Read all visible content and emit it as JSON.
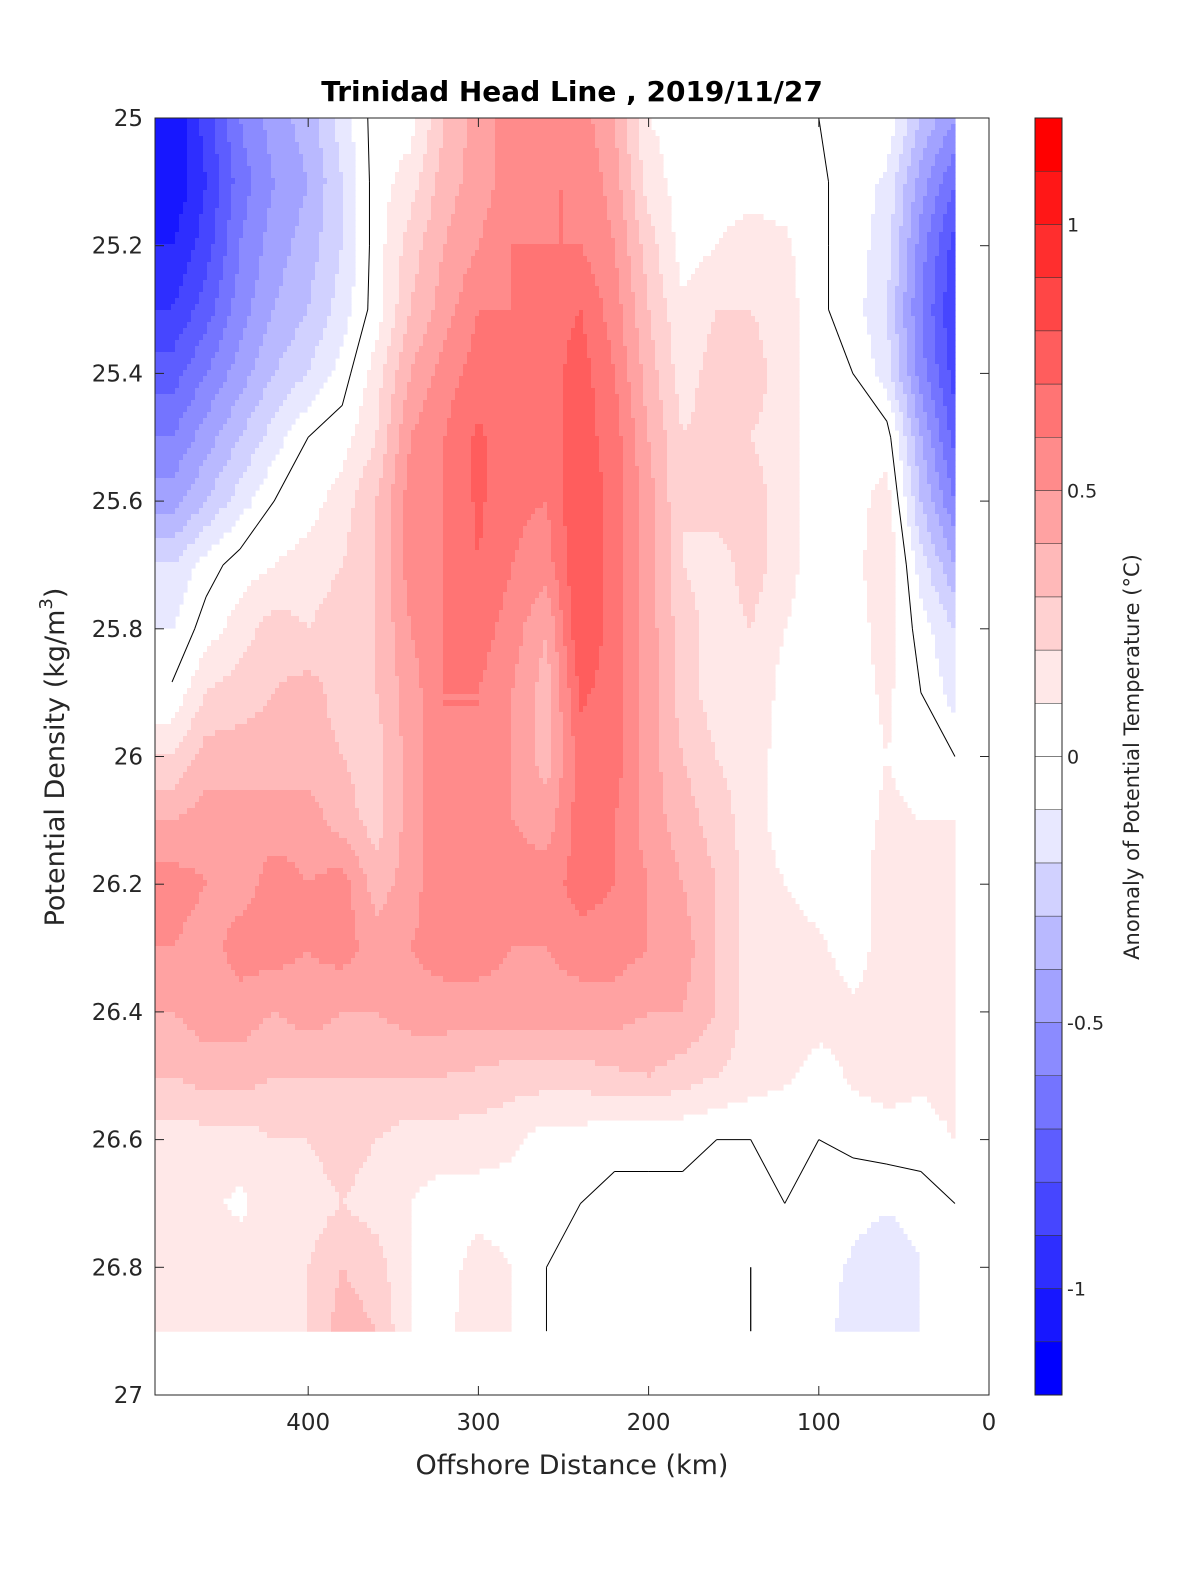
{
  "chart_data": {
    "type": "heatmap",
    "subtype": "filled-contour",
    "title": "Trinidad Head Line , 2019/11/27",
    "xlabel": "Offshore Distance (km)",
    "ylabel_main": "Potential Density (kg/m",
    "ylabel_sup": "3",
    "ylabel_close": ")",
    "colorbar_label": "Anomaly of Potential Temperature (°C)",
    "xlim": [
      490,
      0
    ],
    "ylim": [
      25,
      27
    ],
    "x_reversed": true,
    "y_reversed": true,
    "xticks": [
      400,
      300,
      200,
      100,
      0
    ],
    "xtick_labels": [
      "400",
      "300",
      "200",
      "100",
      "0"
    ],
    "yticks": [
      25,
      25.2,
      25.4,
      25.6,
      25.8,
      26,
      26.2,
      26.4,
      26.6,
      26.8,
      27
    ],
    "ytick_labels": [
      "25",
      "25.2",
      "25.4",
      "25.6",
      "25.8",
      "26",
      "26.2",
      "26.4",
      "26.6",
      "26.8",
      "27"
    ],
    "colorbar": {
      "range": [
        -1.2,
        1.2
      ],
      "step": 0.1,
      "white_band": [
        -0.1,
        0.1
      ],
      "ticks": [
        1,
        0.5,
        0,
        -0.5,
        -1
      ],
      "tick_labels": [
        "1",
        "0.5",
        "0",
        "-0.5",
        "-1"
      ],
      "positive_color": "#ff0000",
      "negative_color": "#0000ff"
    },
    "contour_lines": [
      0
    ],
    "x": [
      480,
      460,
      440,
      420,
      400,
      380,
      360,
      340,
      320,
      300,
      280,
      260,
      240,
      220,
      200,
      180,
      160,
      140,
      120,
      100,
      80,
      60,
      40,
      20
    ],
    "y": [
      25.0,
      25.1,
      25.2,
      25.3,
      25.4,
      25.5,
      25.6,
      25.7,
      25.8,
      25.9,
      26.0,
      26.1,
      26.2,
      26.3,
      26.4,
      26.5,
      26.6,
      26.7,
      26.8,
      26.9
    ],
    "z": [
      [
        -1.1,
        -0.85,
        -0.6,
        -0.45,
        -0.35,
        -0.15,
        0.05,
        0.05,
        0.3,
        0.45,
        0.55,
        0.6,
        0.55,
        0.4,
        0.1,
        0.05,
        0.05,
        0.05,
        0.05,
        0.0,
        -0.02,
        -0.02,
        -0.3,
        -0.5
      ],
      [
        -1.1,
        -0.9,
        -0.65,
        -0.5,
        -0.4,
        -0.2,
        0.05,
        0.15,
        0.35,
        0.45,
        0.55,
        0.6,
        0.6,
        0.45,
        0.15,
        0.05,
        0.05,
        0.05,
        0.05,
        0.02,
        -0.05,
        -0.12,
        -0.45,
        -0.7
      ],
      [
        -1.0,
        -0.85,
        -0.6,
        -0.45,
        -0.35,
        -0.2,
        0.05,
        0.25,
        0.4,
        0.5,
        0.6,
        0.6,
        0.6,
        0.5,
        0.25,
        0.05,
        0.1,
        0.15,
        0.12,
        0.02,
        -0.05,
        -0.15,
        -0.55,
        -0.85
      ],
      [
        -0.9,
        -0.75,
        -0.55,
        -0.4,
        -0.3,
        -0.15,
        0.05,
        0.3,
        0.45,
        0.6,
        0.6,
        0.65,
        0.7,
        0.55,
        0.3,
        0.12,
        0.2,
        0.2,
        0.15,
        0.02,
        -0.05,
        -0.2,
        -0.6,
        -0.9
      ],
      [
        -0.75,
        -0.6,
        -0.45,
        -0.3,
        -0.2,
        -0.05,
        0.15,
        0.4,
        0.55,
        0.65,
        0.65,
        0.65,
        0.75,
        0.6,
        0.35,
        0.15,
        0.25,
        0.25,
        0.15,
        0.02,
        0.0,
        -0.15,
        -0.55,
        -0.85
      ],
      [
        -0.6,
        -0.45,
        -0.3,
        -0.15,
        0.0,
        0.05,
        0.2,
        0.5,
        0.6,
        0.72,
        0.62,
        0.65,
        0.75,
        0.65,
        0.4,
        0.2,
        0.25,
        0.2,
        0.15,
        0.02,
        0.02,
        0.05,
        -0.4,
        -0.75
      ],
      [
        -0.45,
        -0.3,
        -0.15,
        0.0,
        0.05,
        0.15,
        0.3,
        0.55,
        0.6,
        0.72,
        0.62,
        0.6,
        0.8,
        0.65,
        0.45,
        0.2,
        0.25,
        0.25,
        0.15,
        0.02,
        0.05,
        0.15,
        -0.3,
        -0.6
      ],
      [
        -0.2,
        -0.05,
        0.05,
        0.1,
        0.15,
        0.2,
        0.3,
        0.55,
        0.6,
        0.7,
        0.6,
        0.55,
        0.8,
        0.65,
        0.45,
        0.2,
        0.15,
        0.25,
        0.15,
        0.02,
        0.05,
        0.2,
        -0.15,
        -0.4
      ],
      [
        -0.1,
        0.05,
        0.15,
        0.25,
        0.2,
        0.25,
        0.3,
        0.5,
        0.6,
        0.65,
        0.55,
        0.4,
        0.8,
        0.65,
        0.45,
        0.25,
        0.15,
        0.2,
        0.1,
        0.02,
        0.05,
        0.15,
        -0.05,
        -0.2
      ],
      [
        0.02,
        0.2,
        0.25,
        0.3,
        0.35,
        0.25,
        0.3,
        0.45,
        0.6,
        0.6,
        0.5,
        0.35,
        0.72,
        0.65,
        0.45,
        0.25,
        0.15,
        0.2,
        0.05,
        0.0,
        0.05,
        0.12,
        0.0,
        -0.15
      ],
      [
        0.2,
        0.35,
        0.35,
        0.35,
        0.35,
        0.3,
        0.25,
        0.45,
        0.6,
        0.6,
        0.5,
        0.35,
        0.65,
        0.65,
        0.45,
        0.3,
        0.2,
        0.15,
        0.05,
        0.0,
        0.05,
        0.1,
        0.05,
        0.0
      ],
      [
        0.4,
        0.45,
        0.45,
        0.45,
        0.45,
        0.35,
        0.25,
        0.45,
        0.6,
        0.6,
        0.5,
        0.45,
        0.65,
        0.6,
        0.45,
        0.35,
        0.25,
        0.15,
        0.05,
        0.0,
        0.05,
        0.12,
        0.1,
        0.1
      ],
      [
        0.55,
        0.5,
        0.45,
        0.55,
        0.5,
        0.55,
        0.35,
        0.45,
        0.6,
        0.6,
        0.55,
        0.55,
        0.65,
        0.6,
        0.5,
        0.4,
        0.3,
        0.15,
        0.1,
        0.05,
        0.05,
        0.15,
        0.15,
        0.1
      ],
      [
        0.5,
        0.45,
        0.55,
        0.55,
        0.5,
        0.55,
        0.45,
        0.5,
        0.55,
        0.55,
        0.5,
        0.5,
        0.55,
        0.55,
        0.5,
        0.45,
        0.3,
        0.15,
        0.15,
        0.12,
        0.05,
        0.15,
        0.15,
        0.15
      ],
      [
        0.4,
        0.45,
        0.45,
        0.4,
        0.45,
        0.4,
        0.4,
        0.45,
        0.45,
        0.45,
        0.45,
        0.45,
        0.45,
        0.45,
        0.4,
        0.4,
        0.3,
        0.15,
        0.2,
        0.15,
        0.12,
        0.15,
        0.15,
        0.15
      ],
      [
        0.3,
        0.35,
        0.35,
        0.3,
        0.3,
        0.3,
        0.3,
        0.3,
        0.3,
        0.28,
        0.25,
        0.25,
        0.25,
        0.28,
        0.3,
        0.25,
        0.2,
        0.15,
        0.12,
        0.05,
        0.12,
        0.15,
        0.12,
        0.15
      ],
      [
        0.15,
        0.15,
        0.15,
        0.2,
        0.2,
        0.25,
        0.2,
        0.15,
        0.15,
        0.15,
        0.12,
        0.05,
        0.05,
        0.02,
        0.02,
        0.02,
        0.0,
        0.0,
        0.0,
        0.0,
        0.02,
        0.05,
        0.05,
        0.1
      ],
      [
        0.12,
        0.12,
        0.08,
        0.15,
        0.15,
        0.2,
        0.15,
        0.1,
        0.05,
        0.05,
        0.05,
        0.0,
        0.0,
        -0.02,
        -0.02,
        -0.02,
        -0.02,
        -0.02,
        0.0,
        -0.03,
        -0.05,
        -0.08,
        -0.05,
        0.0
      ],
      [
        0.1,
        0.2,
        0.15,
        0.15,
        0.2,
        0.3,
        0.25,
        0.1,
        0.05,
        0.15,
        0.1,
        0.0,
        -0.02,
        -0.03,
        -0.02,
        -0.02,
        -0.02,
        0.0,
        -0.02,
        -0.05,
        -0.12,
        -0.2,
        -0.1,
        -0.05
      ],
      [
        0.15,
        0.2,
        0.2,
        0.2,
        0.2,
        0.35,
        0.3,
        0.1,
        0.05,
        0.2,
        0.1,
        0.0,
        -0.02,
        -0.03,
        0.0,
        -0.02,
        -0.02,
        0.0,
        -0.02,
        -0.05,
        -0.15,
        -0.2,
        -0.1,
        -0.05
      ]
    ]
  }
}
